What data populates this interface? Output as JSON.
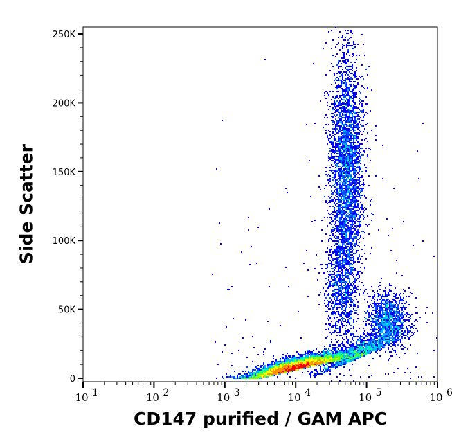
{
  "chart_data": {
    "type": "scatter",
    "subtype": "density dot plot",
    "xlabel": "CD147 purified / GAM APC",
    "ylabel": "Side Scatter",
    "x_scale": "log",
    "xlim": [
      10,
      1000000
    ],
    "ylim": [
      0,
      255000
    ],
    "x_ticks": [
      {
        "base": "10",
        "exp": "1",
        "value": 10
      },
      {
        "base": "10",
        "exp": "2",
        "value": 100
      },
      {
        "base": "10",
        "exp": "3",
        "value": 1000
      },
      {
        "base": "10",
        "exp": "4",
        "value": 10000
      },
      {
        "base": "10",
        "exp": "5",
        "value": 100000
      },
      {
        "base": "10",
        "exp": "6",
        "value": 1000000
      }
    ],
    "y_ticks": [
      {
        "label": "0",
        "value": 0
      },
      {
        "label": "50K",
        "value": 50000
      },
      {
        "label": "100K",
        "value": 100000
      },
      {
        "label": "150K",
        "value": 150000
      },
      {
        "label": "200K",
        "value": 200000
      },
      {
        "label": "250K",
        "value": 250000
      }
    ],
    "grid": false,
    "density_colors": [
      "#0000ff",
      "#0050ff",
      "#00b4ff",
      "#00ff9c",
      "#7cff00",
      "#ffff00",
      "#ff9000",
      "#ff0000"
    ],
    "populations": [
      {
        "x_center": 10000,
        "x_log_sd": 0.3,
        "y_center": 6000,
        "y_sd": 5000,
        "events": 9000
      },
      {
        "x_center": 52000,
        "x_log_sd": 0.12,
        "y_center": 150000,
        "y_sd": 45000,
        "events": 3500
      },
      {
        "x_center": 45000,
        "x_log_sd": 0.12,
        "y_center": 65000,
        "y_sd": 20000,
        "events": 800
      },
      {
        "x_center": 200000,
        "x_log_sd": 0.14,
        "y_center": 42000,
        "y_sd": 10000,
        "events": 1200
      },
      {
        "x_center": 80000,
        "x_log_sd": 0.28,
        "y_center": 15000,
        "y_sd": 9000,
        "events": 1500
      }
    ]
  }
}
